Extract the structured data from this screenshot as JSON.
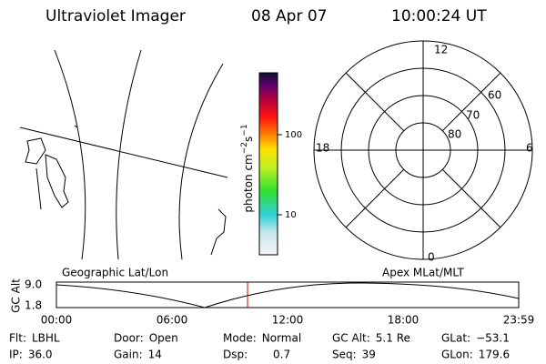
{
  "header": {
    "title": "Ultraviolet Imager",
    "date": "08 Apr 07",
    "time": "10:00:24 UT"
  },
  "colorbar": {
    "label": {
      "base": "photon cm",
      "exp1": "−2",
      "unit2": "s",
      "exp2": "−1"
    },
    "ticks": [
      "100",
      "10"
    ]
  },
  "polar": {
    "labels": {
      "top": "12",
      "bottom": "0",
      "left": "18",
      "right": "6"
    },
    "rings": [
      "60",
      "70",
      "80"
    ]
  },
  "timeline": {
    "left_title": "Geographic Lat/Lon",
    "right_title": "Apex MLat/MLT",
    "y_label": "GC Alt",
    "y_ticks": [
      "9.0",
      "1.8"
    ],
    "x_ticks": [
      "00:00",
      "06:00",
      "12:00",
      "18:00",
      "23:59"
    ]
  },
  "footer": {
    "rows": [
      [
        {
          "label": "Flt:",
          "value": "LBHL"
        },
        {
          "label": "Door:",
          "value": "Open"
        },
        {
          "label": "Mode:",
          "value": "Normal"
        },
        {
          "label": "GC Alt:",
          "value": "5.1 Re"
        },
        {
          "label": "GLat:",
          "value": "−53.1"
        }
      ],
      [
        {
          "label": "IP:",
          "value": "36.0"
        },
        {
          "label": "Gain:",
          "value": "14"
        },
        {
          "label": "Dsp:",
          "value": "0.7"
        },
        {
          "label": "Seq:",
          "value": "39"
        },
        {
          "label": "GLon:",
          "value": "179.6"
        }
      ]
    ]
  }
}
